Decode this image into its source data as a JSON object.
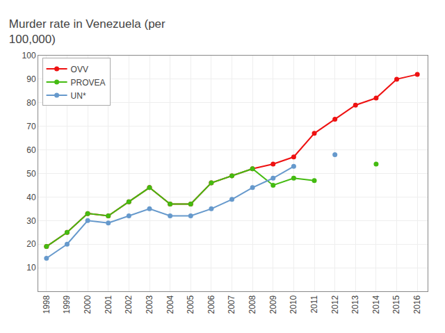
{
  "chart_data": {
    "type": "line",
    "title": "Murder rate in Venezuela (per\n100,000)",
    "x": [
      1998,
      1999,
      2000,
      2001,
      2002,
      2003,
      2004,
      2005,
      2006,
      2007,
      2008,
      2009,
      2010,
      2011,
      2012,
      2013,
      2014,
      2015,
      2016
    ],
    "series": [
      {
        "name": "OVV",
        "color": "#EE1111",
        "marker": "circle",
        "line_style": "solid",
        "values": [
          19,
          25,
          33,
          32,
          38,
          44,
          37,
          37,
          46,
          49,
          52,
          54,
          57,
          67,
          73,
          79,
          82,
          90,
          92
        ]
      },
      {
        "name": "PROVEA",
        "color": "#44BB11",
        "marker": "circle",
        "line_style": "solid",
        "values": [
          19,
          25,
          33,
          32,
          38,
          44,
          37,
          37,
          46,
          49,
          52,
          45,
          48,
          47,
          null,
          null,
          54,
          null,
          null
        ]
      },
      {
        "name": "UN*",
        "color": "#6699CC",
        "marker": "circle",
        "line_style": "solid",
        "values": [
          14,
          20,
          30,
          29,
          32,
          35,
          32,
          32,
          35,
          39,
          44,
          48,
          53,
          null,
          58,
          null,
          null,
          null,
          null
        ]
      }
    ],
    "xlim": [
      1997.6,
      2016.5
    ],
    "ylim": [
      0,
      100
    ],
    "xticks": [
      1998,
      1999,
      2000,
      2001,
      2002,
      2003,
      2004,
      2005,
      2006,
      2007,
      2008,
      2009,
      2010,
      2011,
      2012,
      2013,
      2014,
      2015,
      2016
    ],
    "yticks": [
      10,
      20,
      30,
      40,
      50,
      60,
      70,
      80,
      90,
      100
    ],
    "grid": true,
    "legend": "upper left"
  }
}
